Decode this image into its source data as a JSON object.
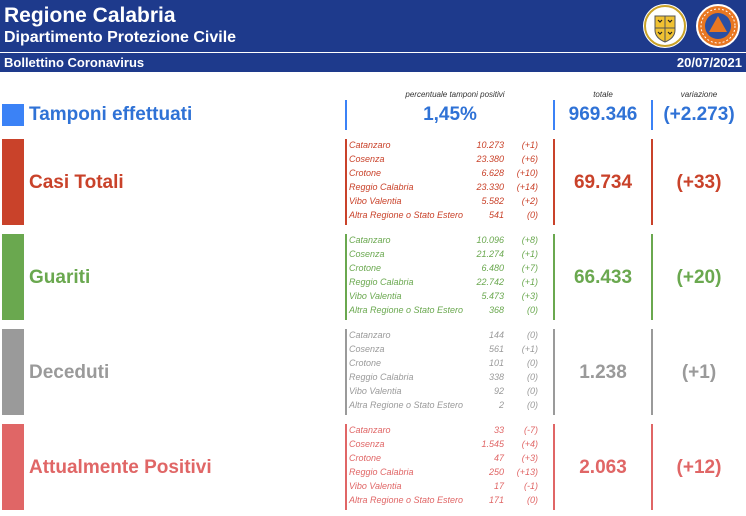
{
  "header": {
    "title": "Regione Calabria",
    "subtitle": "Dipartimento Protezione Civile",
    "bulletin": "Bollettino Coronavirus",
    "date": "20/07/2021",
    "bg_color": "#1e3a8c",
    "logos": [
      "regione-calabria-crest",
      "protezione-civile-logo"
    ]
  },
  "column_labels": {
    "percent": "percentuale tamponi positivi",
    "total": "totale",
    "variation": "variazione"
  },
  "tamponi": {
    "label": "Tamponi effettuati",
    "percent": "1,45%",
    "total": "969.346",
    "variation": "(+2.273)",
    "color": "#3b82f6"
  },
  "sections": [
    {
      "label": "Casi Totali",
      "color": "#c9422a",
      "total": "69.734",
      "variation": "(+33)",
      "rows": [
        {
          "name": "Catanzaro",
          "value": "10.273",
          "delta": "(+1)"
        },
        {
          "name": "Cosenza",
          "value": "23.380",
          "delta": "(+6)"
        },
        {
          "name": "Crotone",
          "value": "6.628",
          "delta": "(+10)"
        },
        {
          "name": "Reggio Calabria",
          "value": "23.330",
          "delta": "(+14)"
        },
        {
          "name": "Vibo Valentia",
          "value": "5.582",
          "delta": "(+2)"
        },
        {
          "name": "Altra Regione o Stato Estero",
          "value": "541",
          "delta": "(0)"
        }
      ]
    },
    {
      "label": "Guariti",
      "color": "#6aa84f",
      "total": "66.433",
      "variation": "(+20)",
      "rows": [
        {
          "name": "Catanzaro",
          "value": "10.096",
          "delta": "(+8)"
        },
        {
          "name": "Cosenza",
          "value": "21.274",
          "delta": "(+1)"
        },
        {
          "name": "Crotone",
          "value": "6.480",
          "delta": "(+7)"
        },
        {
          "name": "Reggio Calabria",
          "value": "22.742",
          "delta": "(+1)"
        },
        {
          "name": "Vibo Valentia",
          "value": "5.473",
          "delta": "(+3)"
        },
        {
          "name": "Altra Regione o Stato Estero",
          "value": "368",
          "delta": "(0)"
        }
      ]
    },
    {
      "label": "Deceduti",
      "color": "#9a9a9a",
      "total": "1.238",
      "variation": "(+1)",
      "rows": [
        {
          "name": "Catanzaro",
          "value": "144",
          "delta": "(0)"
        },
        {
          "name": "Cosenza",
          "value": "561",
          "delta": "(+1)"
        },
        {
          "name": "Crotone",
          "value": "101",
          "delta": "(0)"
        },
        {
          "name": "Reggio Calabria",
          "value": "338",
          "delta": "(0)"
        },
        {
          "name": "Vibo Valentia",
          "value": "92",
          "delta": "(0)"
        },
        {
          "name": "Altra Regione o Stato Estero",
          "value": "2",
          "delta": "(0)"
        }
      ]
    },
    {
      "label": "Attualmente Positivi",
      "color": "#e06666",
      "total": "2.063",
      "variation": "(+12)",
      "rows": [
        {
          "name": "Catanzaro",
          "value": "33",
          "delta": "(-7)"
        },
        {
          "name": "Cosenza",
          "value": "1.545",
          "delta": "(+4)"
        },
        {
          "name": "Crotone",
          "value": "47",
          "delta": "(+3)"
        },
        {
          "name": "Reggio Calabria",
          "value": "250",
          "delta": "(+13)"
        },
        {
          "name": "Vibo Valentia",
          "value": "17",
          "delta": "(-1)"
        },
        {
          "name": "Altra Regione o Stato Estero",
          "value": "171",
          "delta": "(0)"
        }
      ]
    }
  ]
}
